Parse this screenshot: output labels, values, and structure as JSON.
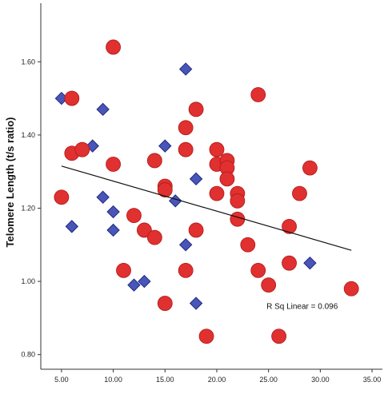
{
  "chart_data": {
    "type": "scatter",
    "ylabel": "Telomere Length (t/s ratio)",
    "xlabel": "",
    "xlim": [
      3,
      36
    ],
    "ylim": [
      0.76,
      1.76
    ],
    "x_ticks": [
      5,
      10,
      15,
      20,
      25,
      30,
      35
    ],
    "x_tick_labels": [
      "5.00",
      "10.00",
      "15.00",
      "20.00",
      "25.00",
      "30.00",
      "35.00"
    ],
    "y_ticks": [
      0.8,
      1.0,
      1.2,
      1.4,
      1.6
    ],
    "y_tick_labels": [
      "0.80",
      "1.00",
      "1.20",
      "1.40",
      "1.60"
    ],
    "grid": false,
    "series": [
      {
        "marker": "diamond",
        "color": "#4a55b8",
        "points": [
          [
            5.0,
            1.5
          ],
          [
            8.0,
            1.37
          ],
          [
            9.0,
            1.47
          ],
          [
            9.0,
            1.23
          ],
          [
            10.0,
            1.19
          ],
          [
            6.0,
            1.15
          ],
          [
            10.0,
            1.14
          ],
          [
            12.0,
            0.99
          ],
          [
            13.0,
            1.0
          ],
          [
            15.0,
            1.37
          ],
          [
            15.0,
            0.94
          ],
          [
            16.0,
            1.22
          ],
          [
            17.0,
            1.58
          ],
          [
            18.0,
            1.28
          ],
          [
            17.0,
            1.1
          ],
          [
            18.0,
            0.94
          ],
          [
            29.0,
            1.05
          ]
        ]
      },
      {
        "marker": "circle",
        "color": "#e03030",
        "points": [
          [
            5.0,
            1.23
          ],
          [
            6.0,
            1.5
          ],
          [
            6.0,
            1.35
          ],
          [
            7.0,
            1.36
          ],
          [
            10.0,
            1.64
          ],
          [
            10.0,
            1.32
          ],
          [
            11.0,
            1.03
          ],
          [
            12.0,
            1.18
          ],
          [
            13.0,
            1.14
          ],
          [
            14.0,
            1.33
          ],
          [
            14.0,
            1.12
          ],
          [
            15.0,
            1.26
          ],
          [
            15.0,
            1.25
          ],
          [
            15.0,
            0.94
          ],
          [
            17.0,
            1.42
          ],
          [
            17.0,
            1.36
          ],
          [
            17.0,
            1.03
          ],
          [
            18.0,
            1.47
          ],
          [
            18.0,
            1.14
          ],
          [
            19.0,
            0.85
          ],
          [
            20.0,
            1.36
          ],
          [
            20.0,
            1.32
          ],
          [
            20.0,
            1.24
          ],
          [
            21.0,
            1.33
          ],
          [
            21.0,
            1.31
          ],
          [
            21.0,
            1.28
          ],
          [
            22.0,
            1.24
          ],
          [
            22.0,
            1.22
          ],
          [
            22.0,
            1.17
          ],
          [
            23.0,
            1.1
          ],
          [
            24.0,
            1.51
          ],
          [
            24.0,
            1.03
          ],
          [
            25.0,
            0.99
          ],
          [
            26.0,
            0.85
          ],
          [
            27.0,
            1.15
          ],
          [
            27.0,
            1.05
          ],
          [
            28.0,
            1.24
          ],
          [
            29.0,
            1.31
          ],
          [
            33.0,
            0.98
          ]
        ]
      }
    ],
    "fit_line": {
      "x": [
        5.0,
        33.0
      ],
      "y": [
        1.315,
        1.085
      ],
      "color": "#111111"
    },
    "annotation": "R Sq Linear = 0.096",
    "annotation_position": [
      24.8,
      0.925
    ]
  }
}
